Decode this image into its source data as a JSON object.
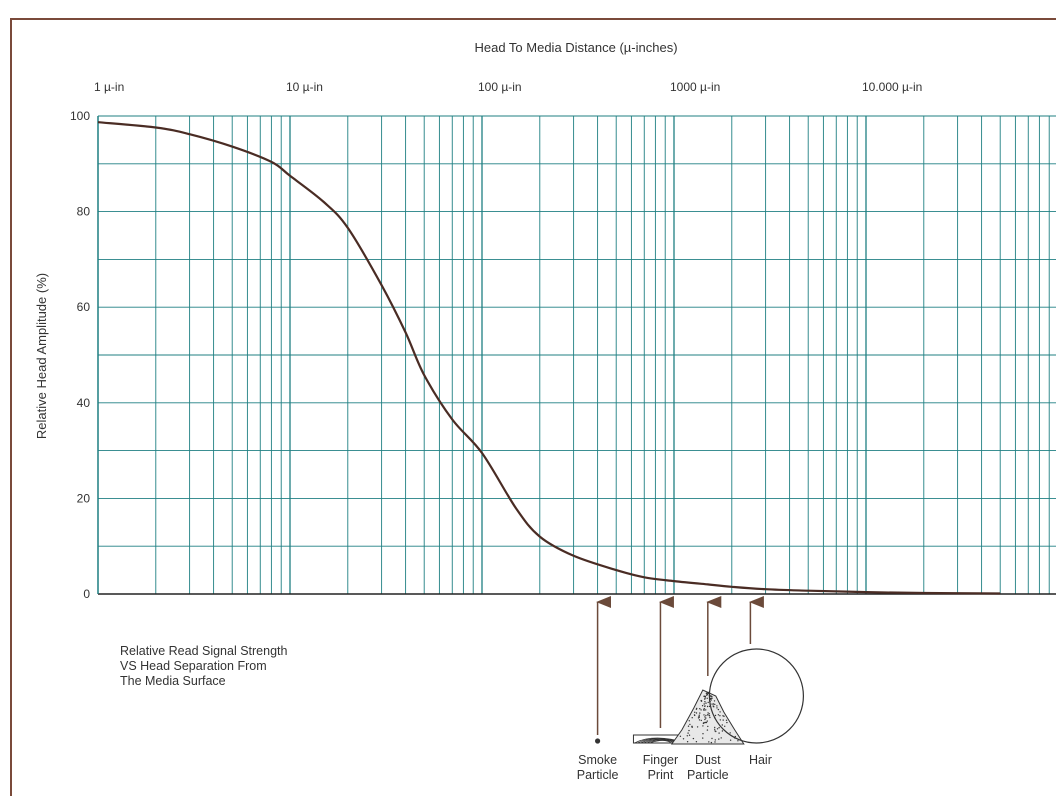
{
  "chart_data": {
    "type": "line",
    "title": "Head To Media Distance (µ-inches)",
    "xlabel": "Head To Media Distance (µ-inches)",
    "ylabel": "Relative Head Amplitude (%)",
    "xscale": "log",
    "xlim": [
      1,
      60000
    ],
    "ylim": [
      0,
      100
    ],
    "x_tick_labels": [
      {
        "value": 1,
        "label": "1 µ-in"
      },
      {
        "value": 10,
        "label": "10 µ-in"
      },
      {
        "value": 100,
        "label": "100 µ-in"
      },
      {
        "value": 1000,
        "label": "1000 µ-in"
      },
      {
        "value": 10000,
        "label": "10.000 µ-in"
      }
    ],
    "y_ticks": [
      0,
      20,
      40,
      60,
      80,
      100
    ],
    "grid": true,
    "series": [
      {
        "x": [
          1,
          2,
          3,
          5,
          8,
          10,
          15,
          20,
          30,
          40,
          50,
          70,
          100,
          150,
          200,
          300,
          500,
          700,
          1000,
          1500,
          2000,
          3000,
          5000,
          10000,
          20000,
          50000
        ],
        "y": [
          98.7,
          97.6,
          96.2,
          93.6,
          90.4,
          87.5,
          82.0,
          76.6,
          64.6,
          54.7,
          45.8,
          36.5,
          29.5,
          18.0,
          12.0,
          8.0,
          5.0,
          3.5,
          2.7,
          2.0,
          1.5,
          1.0,
          0.7,
          0.4,
          0.2,
          0.1
        ]
      }
    ],
    "annotations": [
      {
        "text": "Smoke Particle",
        "lines": [
          "Smoke",
          "Particle"
        ],
        "x": 400
      },
      {
        "text": "Finger Print",
        "lines": [
          "Finger",
          "Print"
        ],
        "x": 850
      },
      {
        "text": "Dust Particle",
        "lines": [
          "Dust",
          "Particle"
        ],
        "x": 1500
      },
      {
        "text": "Hair",
        "lines": [
          "Hair"
        ],
        "x": 2500
      }
    ],
    "caption": [
      "Relative Read Signal Strength",
      "VS Head Separation From",
      "The Media Surface"
    ],
    "colors": {
      "grid": "#1f7f82",
      "curve": "#4a2c24",
      "frame": "#7a4a3a",
      "arrow": "#6b4a3a"
    }
  }
}
